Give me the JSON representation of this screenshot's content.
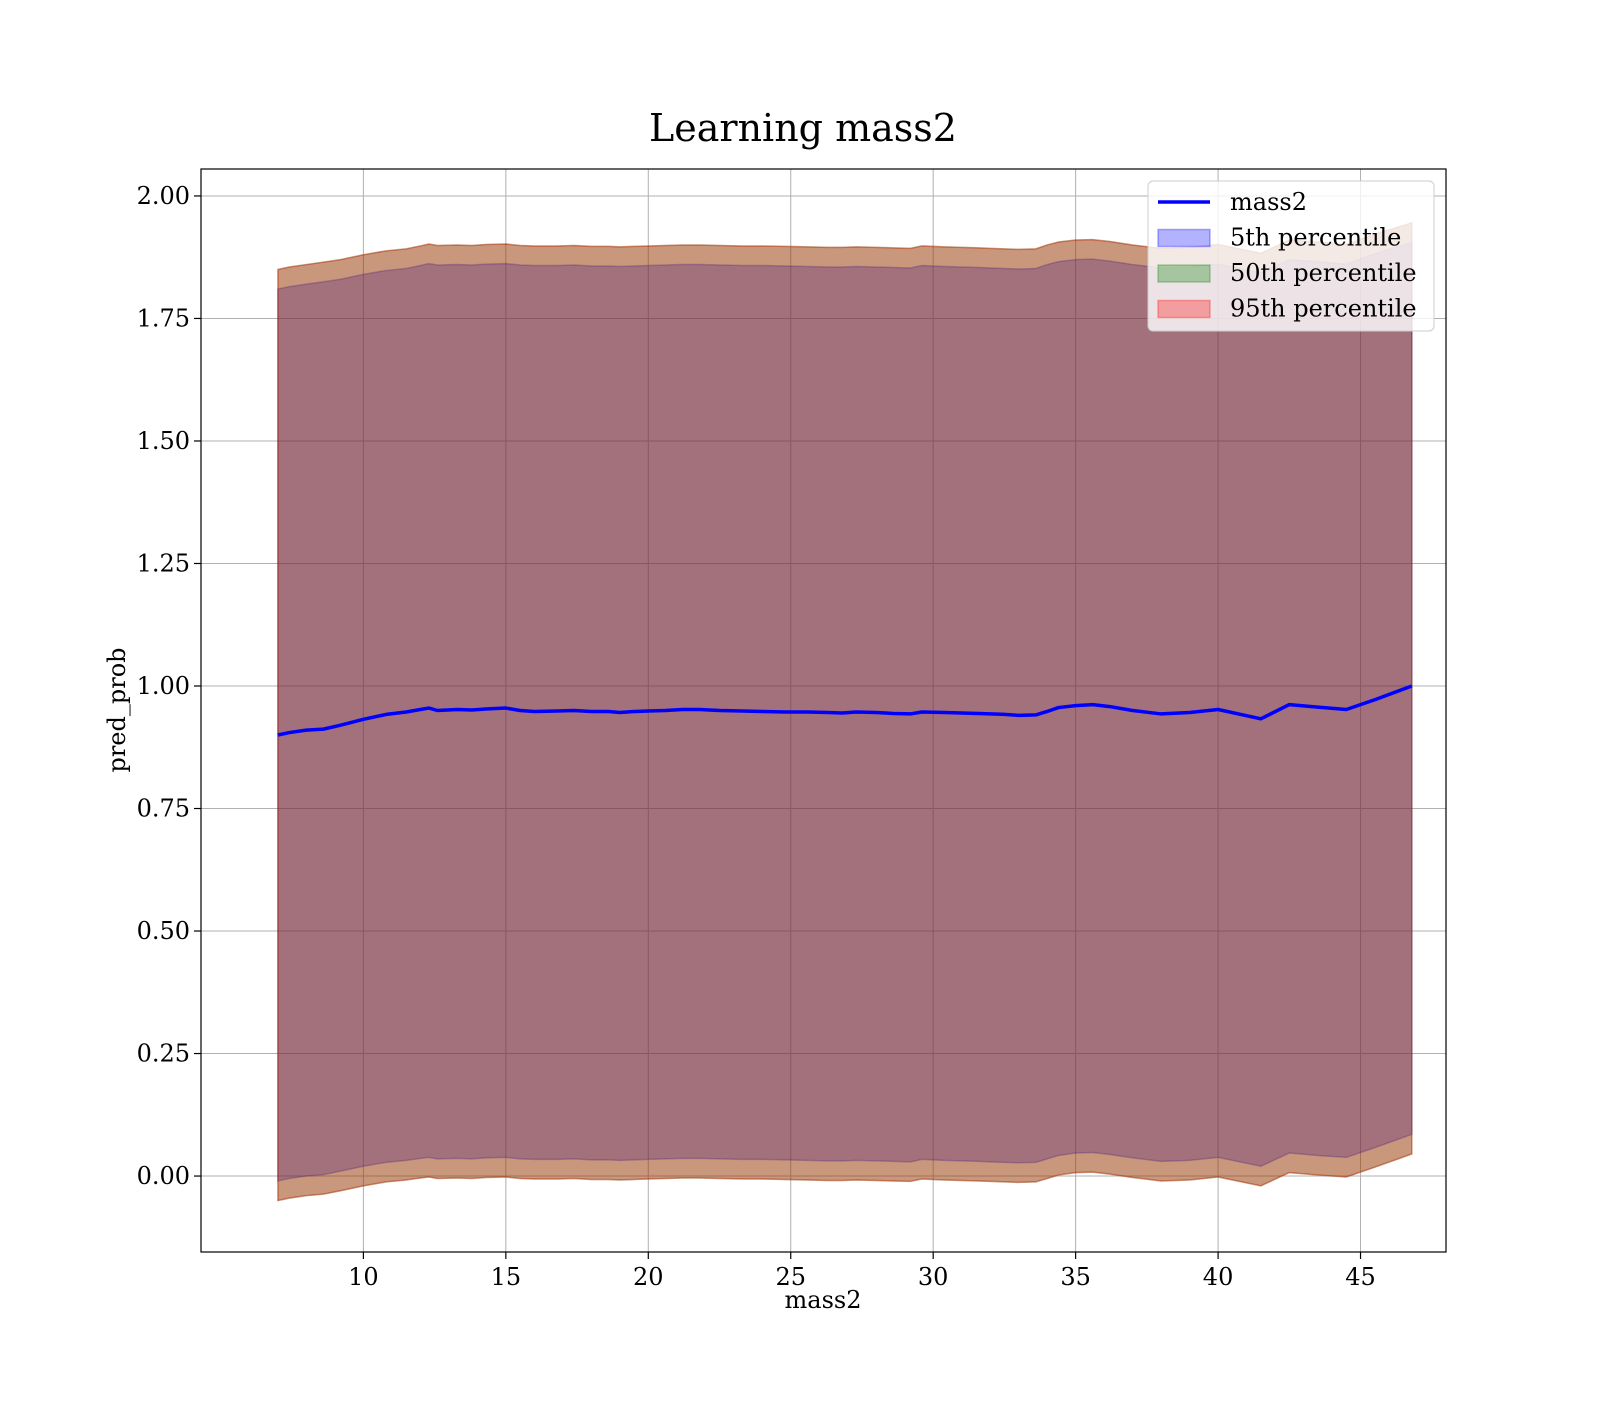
{
  "chart_data": {
    "type": "area",
    "title": "Learning mass2",
    "xlabel": "mass2",
    "ylabel": "pred_prob",
    "xlim": [
      4.3,
      48.0
    ],
    "ylim": [
      -0.155,
      2.055
    ],
    "xticks": [
      10,
      15,
      20,
      25,
      30,
      35,
      40,
      45
    ],
    "yticks": [
      0.0,
      0.25,
      0.5,
      0.75,
      1.0,
      1.25,
      1.5,
      1.75,
      2.0
    ],
    "ytick_labels": [
      "0.00",
      "0.25",
      "0.50",
      "0.75",
      "1.00",
      "1.25",
      "1.50",
      "1.75",
      "2.00"
    ],
    "grid": true,
    "legend_position": "top-right",
    "x": [
      7.0,
      7.4,
      8.0,
      8.6,
      9.2,
      10.0,
      10.8,
      11.5,
      12.0,
      12.3,
      12.6,
      13.3,
      13.8,
      14.3,
      15.0,
      15.5,
      16.0,
      16.8,
      17.4,
      18.0,
      18.6,
      19.0,
      19.5,
      20.0,
      20.6,
      21.2,
      21.8,
      22.5,
      23.3,
      24.0,
      24.8,
      25.6,
      26.3,
      26.8,
      27.3,
      28.0,
      28.6,
      29.2,
      29.6,
      30.4,
      31.0,
      31.6,
      32.0,
      32.5,
      33.0,
      33.6,
      34.0,
      34.4,
      35.0,
      35.6,
      36.2,
      37.0,
      38.0,
      39.0,
      40.0,
      41.5,
      42.5,
      43.5,
      44.5,
      45.5,
      46.8
    ],
    "series": [
      {
        "name": "mass2",
        "kind": "line",
        "color": "#0000ff",
        "values": [
          0.9,
          0.905,
          0.91,
          0.912,
          0.92,
          0.932,
          0.942,
          0.947,
          0.952,
          0.955,
          0.95,
          0.952,
          0.951,
          0.953,
          0.955,
          0.95,
          0.948,
          0.949,
          0.95,
          0.948,
          0.948,
          0.946,
          0.948,
          0.949,
          0.95,
          0.952,
          0.952,
          0.95,
          0.949,
          0.948,
          0.947,
          0.947,
          0.946,
          0.945,
          0.947,
          0.946,
          0.944,
          0.943,
          0.947,
          0.946,
          0.945,
          0.944,
          0.943,
          0.942,
          0.94,
          0.941,
          0.948,
          0.956,
          0.96,
          0.962,
          0.958,
          0.95,
          0.943,
          0.946,
          0.952,
          0.933,
          0.962,
          0.957,
          0.952,
          0.972,
          1.0
        ]
      },
      {
        "name": "5th percentile",
        "kind": "band",
        "color": "#0000ff",
        "lower": [
          -0.01,
          -0.005,
          0.0,
          0.003,
          0.01,
          0.02,
          0.028,
          0.032,
          0.036,
          0.038,
          0.035,
          0.036,
          0.035,
          0.037,
          0.038,
          0.035,
          0.034,
          0.034,
          0.035,
          0.033,
          0.033,
          0.032,
          0.033,
          0.034,
          0.035,
          0.036,
          0.036,
          0.035,
          0.034,
          0.034,
          0.033,
          0.032,
          0.031,
          0.031,
          0.032,
          0.031,
          0.03,
          0.029,
          0.034,
          0.032,
          0.031,
          0.03,
          0.029,
          0.028,
          0.027,
          0.028,
          0.035,
          0.042,
          0.047,
          0.048,
          0.044,
          0.037,
          0.03,
          0.032,
          0.038,
          0.02,
          0.047,
          0.042,
          0.038,
          0.058,
          0.085
        ],
        "upper": [
          1.81,
          1.815,
          1.82,
          1.825,
          1.83,
          1.84,
          1.848,
          1.852,
          1.858,
          1.862,
          1.859,
          1.86,
          1.859,
          1.861,
          1.862,
          1.859,
          1.858,
          1.858,
          1.859,
          1.857,
          1.857,
          1.856,
          1.857,
          1.858,
          1.859,
          1.86,
          1.86,
          1.859,
          1.858,
          1.858,
          1.857,
          1.856,
          1.855,
          1.855,
          1.856,
          1.855,
          1.854,
          1.853,
          1.858,
          1.856,
          1.855,
          1.854,
          1.853,
          1.852,
          1.851,
          1.852,
          1.86,
          1.866,
          1.87,
          1.871,
          1.867,
          1.86,
          1.853,
          1.855,
          1.861,
          1.843,
          1.87,
          1.866,
          1.861,
          1.882,
          1.905
        ]
      },
      {
        "name": "50th percentile",
        "kind": "band",
        "color": "#008000",
        "lower": [
          -0.05,
          -0.045,
          -0.04,
          -0.037,
          -0.03,
          -0.02,
          -0.012,
          -0.008,
          -0.004,
          -0.002,
          -0.005,
          -0.004,
          -0.005,
          -0.003,
          -0.002,
          -0.005,
          -0.006,
          -0.006,
          -0.005,
          -0.007,
          -0.007,
          -0.008,
          -0.007,
          -0.006,
          -0.005,
          -0.004,
          -0.004,
          -0.005,
          -0.006,
          -0.006,
          -0.007,
          -0.008,
          -0.009,
          -0.009,
          -0.008,
          -0.009,
          -0.01,
          -0.011,
          -0.006,
          -0.008,
          -0.009,
          -0.01,
          -0.011,
          -0.012,
          -0.013,
          -0.012,
          -0.005,
          0.002,
          0.007,
          0.008,
          0.004,
          -0.003,
          -0.01,
          -0.008,
          -0.002,
          -0.02,
          0.007,
          0.002,
          -0.002,
          0.018,
          0.045
        ],
        "upper": [
          1.85,
          1.855,
          1.86,
          1.865,
          1.87,
          1.88,
          1.888,
          1.892,
          1.898,
          1.902,
          1.899,
          1.9,
          1.899,
          1.901,
          1.902,
          1.899,
          1.898,
          1.898,
          1.899,
          1.897,
          1.897,
          1.896,
          1.897,
          1.898,
          1.899,
          1.9,
          1.9,
          1.899,
          1.898,
          1.898,
          1.897,
          1.896,
          1.895,
          1.895,
          1.896,
          1.895,
          1.894,
          1.893,
          1.898,
          1.896,
          1.895,
          1.894,
          1.893,
          1.892,
          1.891,
          1.892,
          1.9,
          1.906,
          1.91,
          1.911,
          1.907,
          1.9,
          1.893,
          1.895,
          1.901,
          1.883,
          1.91,
          1.906,
          1.901,
          1.922,
          1.945
        ]
      },
      {
        "name": "95th percentile",
        "kind": "band",
        "color": "#ff0000",
        "lower": [
          -0.05,
          -0.045,
          -0.04,
          -0.037,
          -0.03,
          -0.02,
          -0.012,
          -0.008,
          -0.004,
          -0.002,
          -0.005,
          -0.004,
          -0.005,
          -0.003,
          -0.002,
          -0.005,
          -0.006,
          -0.006,
          -0.005,
          -0.007,
          -0.007,
          -0.008,
          -0.007,
          -0.006,
          -0.005,
          -0.004,
          -0.004,
          -0.005,
          -0.006,
          -0.006,
          -0.007,
          -0.008,
          -0.009,
          -0.009,
          -0.008,
          -0.009,
          -0.01,
          -0.011,
          -0.006,
          -0.008,
          -0.009,
          -0.01,
          -0.011,
          -0.012,
          -0.013,
          -0.012,
          -0.005,
          0.002,
          0.007,
          0.008,
          0.004,
          -0.003,
          -0.01,
          -0.008,
          -0.002,
          -0.02,
          0.007,
          0.002,
          -0.002,
          0.018,
          0.045
        ],
        "upper": [
          1.85,
          1.855,
          1.86,
          1.865,
          1.87,
          1.88,
          1.888,
          1.892,
          1.898,
          1.902,
          1.899,
          1.9,
          1.899,
          1.901,
          1.902,
          1.899,
          1.898,
          1.898,
          1.899,
          1.897,
          1.897,
          1.896,
          1.897,
          1.898,
          1.899,
          1.9,
          1.9,
          1.899,
          1.898,
          1.898,
          1.897,
          1.896,
          1.895,
          1.895,
          1.896,
          1.895,
          1.894,
          1.893,
          1.898,
          1.896,
          1.895,
          1.894,
          1.893,
          1.892,
          1.891,
          1.892,
          1.9,
          1.906,
          1.91,
          1.911,
          1.907,
          1.9,
          1.893,
          1.895,
          1.901,
          1.883,
          1.91,
          1.906,
          1.901,
          1.922,
          1.945
        ]
      }
    ]
  }
}
